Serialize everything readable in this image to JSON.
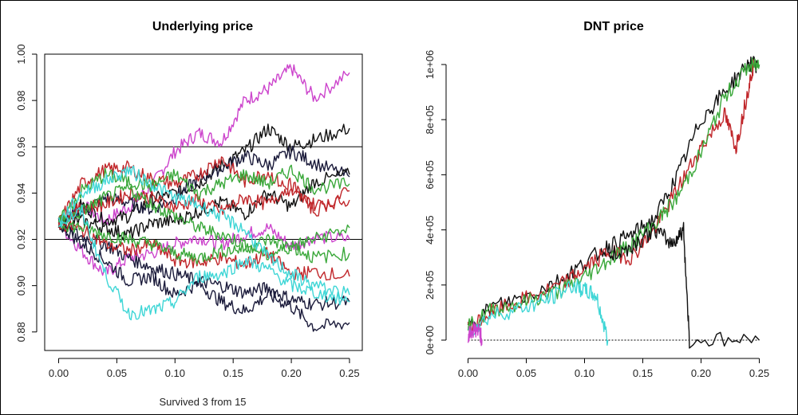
{
  "caption": "Survived 3 from 15",
  "colors": {
    "black": "#111111",
    "navy": "#1a1a3a",
    "red": "#c0262a",
    "green": "#3aa83a",
    "cyan": "#3fd6d6",
    "magenta": "#cc44cc"
  },
  "chart_data": [
    {
      "type": "line",
      "title": "Underlying price",
      "xlabel": "",
      "ylabel": "",
      "xlim": [
        0,
        0.25
      ],
      "ylim": [
        0.872,
        1.0
      ],
      "x_ticks": [
        "0.00",
        "0.05",
        "0.10",
        "0.15",
        "0.20",
        "0.25"
      ],
      "y_ticks": [
        "0.88",
        "0.90",
        "0.92",
        "0.94",
        "0.96",
        "0.98",
        "1.00"
      ],
      "barriers": [
        0.92,
        0.96
      ],
      "series": [
        {
          "color": "magenta",
          "x": [
            0,
            0.02,
            0.04,
            0.06,
            0.08,
            0.1,
            0.12,
            0.14,
            0.16,
            0.18,
            0.2,
            0.22,
            0.25
          ],
          "y": [
            0.927,
            0.935,
            0.928,
            0.934,
            0.943,
            0.958,
            0.966,
            0.962,
            0.98,
            0.985,
            0.994,
            0.981,
            0.992
          ]
        },
        {
          "color": "magenta",
          "x": [
            0,
            0.02,
            0.04,
            0.06,
            0.08,
            0.1,
            0.12,
            0.14,
            0.16,
            0.18,
            0.2,
            0.22,
            0.25
          ],
          "y": [
            0.927,
            0.915,
            0.905,
            0.912,
            0.914,
            0.918,
            0.921,
            0.918,
            0.922,
            0.925,
            0.917,
            0.921,
            0.92
          ]
        },
        {
          "color": "black",
          "x": [
            0,
            0.02,
            0.04,
            0.06,
            0.08,
            0.1,
            0.12,
            0.14,
            0.16,
            0.18,
            0.2,
            0.22,
            0.25
          ],
          "y": [
            0.927,
            0.935,
            0.928,
            0.93,
            0.937,
            0.94,
            0.944,
            0.952,
            0.958,
            0.968,
            0.96,
            0.963,
            0.968
          ]
        },
        {
          "color": "navy",
          "x": [
            0,
            0.02,
            0.04,
            0.06,
            0.08,
            0.1,
            0.12,
            0.14,
            0.16,
            0.18,
            0.2,
            0.22,
            0.25
          ],
          "y": [
            0.927,
            0.932,
            0.938,
            0.936,
            0.933,
            0.938,
            0.946,
            0.951,
            0.956,
            0.952,
            0.958,
            0.953,
            0.947
          ]
        },
        {
          "color": "black",
          "x": [
            0,
            0.02,
            0.04,
            0.06,
            0.08,
            0.1,
            0.12,
            0.14,
            0.16,
            0.18,
            0.2,
            0.22,
            0.25
          ],
          "y": [
            0.927,
            0.928,
            0.925,
            0.922,
            0.927,
            0.928,
            0.932,
            0.936,
            0.931,
            0.94,
            0.934,
            0.945,
            0.948
          ]
        },
        {
          "color": "navy",
          "x": [
            0,
            0.02,
            0.04,
            0.06,
            0.08,
            0.1,
            0.12,
            0.14,
            0.16,
            0.18,
            0.2,
            0.22,
            0.25
          ],
          "y": [
            0.927,
            0.918,
            0.911,
            0.902,
            0.904,
            0.896,
            0.901,
            0.893,
            0.889,
            0.896,
            0.891,
            0.882,
            0.884
          ]
        },
        {
          "color": "navy",
          "x": [
            0,
            0.02,
            0.04,
            0.06,
            0.08,
            0.1,
            0.12,
            0.14,
            0.16,
            0.18,
            0.2,
            0.22,
            0.25
          ],
          "y": [
            0.927,
            0.921,
            0.918,
            0.912,
            0.908,
            0.905,
            0.902,
            0.9,
            0.897,
            0.899,
            0.894,
            0.892,
            0.893
          ]
        },
        {
          "color": "red",
          "x": [
            0,
            0.02,
            0.04,
            0.06,
            0.08,
            0.1,
            0.12,
            0.14,
            0.16,
            0.18,
            0.2,
            0.22,
            0.25
          ],
          "y": [
            0.927,
            0.944,
            0.95,
            0.951,
            0.946,
            0.944,
            0.948,
            0.955,
            0.945,
            0.949,
            0.94,
            0.935,
            0.937
          ]
        },
        {
          "color": "red",
          "x": [
            0,
            0.02,
            0.04,
            0.06,
            0.08,
            0.1,
            0.12,
            0.14,
            0.16,
            0.18,
            0.2,
            0.22,
            0.25
          ],
          "y": [
            0.927,
            0.934,
            0.935,
            0.94,
            0.938,
            0.934,
            0.937,
            0.932,
            0.938,
            0.935,
            0.944,
            0.932,
            0.941
          ]
        },
        {
          "color": "red",
          "x": [
            0,
            0.02,
            0.04,
            0.06,
            0.08,
            0.1,
            0.12,
            0.14,
            0.16,
            0.18,
            0.2,
            0.22,
            0.25
          ],
          "y": [
            0.927,
            0.924,
            0.918,
            0.915,
            0.918,
            0.911,
            0.91,
            0.912,
            0.909,
            0.914,
            0.905,
            0.906,
            0.904
          ]
        },
        {
          "color": "green",
          "x": [
            0,
            0.02,
            0.04,
            0.06,
            0.08,
            0.1,
            0.12,
            0.14,
            0.16,
            0.18,
            0.2,
            0.22,
            0.25
          ],
          "y": [
            0.927,
            0.941,
            0.948,
            0.945,
            0.943,
            0.948,
            0.94,
            0.944,
            0.948,
            0.944,
            0.95,
            0.942,
            0.944
          ]
        },
        {
          "color": "green",
          "x": [
            0,
            0.02,
            0.04,
            0.06,
            0.08,
            0.1,
            0.12,
            0.14,
            0.16,
            0.18,
            0.2,
            0.22,
            0.25
          ],
          "y": [
            0.927,
            0.925,
            0.922,
            0.92,
            0.918,
            0.914,
            0.912,
            0.915,
            0.916,
            0.92,
            0.917,
            0.92,
            0.925
          ]
        },
        {
          "color": "green",
          "x": [
            0,
            0.02,
            0.04,
            0.06,
            0.08,
            0.1,
            0.12,
            0.14,
            0.16,
            0.18,
            0.2,
            0.22,
            0.25
          ],
          "y": [
            0.927,
            0.932,
            0.938,
            0.942,
            0.935,
            0.93,
            0.925,
            0.922,
            0.918,
            0.913,
            0.917,
            0.912,
            0.914
          ]
        },
        {
          "color": "cyan",
          "x": [
            0,
            0.02,
            0.04,
            0.06,
            0.08,
            0.1,
            0.12,
            0.14,
            0.16,
            0.18,
            0.2,
            0.22,
            0.25
          ],
          "y": [
            0.927,
            0.932,
            0.905,
            0.888,
            0.889,
            0.893,
            0.904,
            0.905,
            0.911,
            0.907,
            0.9,
            0.897,
            0.893
          ]
        },
        {
          "color": "cyan",
          "x": [
            0,
            0.02,
            0.04,
            0.06,
            0.08,
            0.1,
            0.12,
            0.14,
            0.16,
            0.18,
            0.2,
            0.22,
            0.25
          ],
          "y": [
            0.927,
            0.94,
            0.945,
            0.95,
            0.944,
            0.938,
            0.935,
            0.93,
            0.924,
            0.912,
            0.905,
            0.9,
            0.896
          ]
        }
      ]
    },
    {
      "type": "line",
      "title": "DNT price",
      "xlabel": "",
      "ylabel": "",
      "xlim": [
        0,
        0.25
      ],
      "ylim": [
        0,
        1000000
      ],
      "x_ticks": [
        "0.00",
        "0.05",
        "0.10",
        "0.15",
        "0.20",
        "0.25"
      ],
      "y_ticks": [
        "0e+00",
        "2e+05",
        "4e+05",
        "6e+05",
        "8e+05",
        "1e+06"
      ],
      "series": [
        {
          "color": "black",
          "x": [
            0,
            0.02,
            0.05,
            0.08,
            0.1,
            0.12,
            0.14,
            0.16,
            0.18,
            0.2,
            0.22,
            0.24,
            0.25
          ],
          "y": [
            50000,
            120000,
            160000,
            220000,
            280000,
            340000,
            380000,
            440000,
            600000,
            800000,
            900000,
            1000000,
            1000000
          ]
        },
        {
          "color": "red",
          "x": [
            0,
            0.02,
            0.05,
            0.08,
            0.1,
            0.12,
            0.14,
            0.16,
            0.18,
            0.2,
            0.22,
            0.23,
            0.24,
            0.245
          ],
          "y": [
            40000,
            100000,
            150000,
            200000,
            260000,
            320000,
            300000,
            400000,
            550000,
            700000,
            820000,
            700000,
            900000,
            1000000
          ]
        },
        {
          "color": "green",
          "x": [
            0,
            0.02,
            0.05,
            0.08,
            0.1,
            0.12,
            0.14,
            0.16,
            0.18,
            0.2,
            0.22,
            0.24,
            0.25
          ],
          "y": [
            45000,
            110000,
            140000,
            180000,
            230000,
            290000,
            350000,
            420000,
            520000,
            680000,
            880000,
            990000,
            1000000
          ]
        },
        {
          "color": "cyan",
          "x": [
            0,
            0.02,
            0.05,
            0.07,
            0.09,
            0.1,
            0.11,
            0.12
          ],
          "y": [
            30000,
            90000,
            120000,
            150000,
            200000,
            180000,
            160000,
            0
          ]
        },
        {
          "color": "black",
          "x": [
            0.12,
            0.14,
            0.16,
            0.175,
            0.185,
            0.19,
            0.25
          ],
          "y": [
            300000,
            340000,
            400000,
            350000,
            400000,
            0,
            0
          ]
        },
        {
          "color": "magenta",
          "x": [
            0,
            0.005,
            0.01,
            0.012
          ],
          "y": [
            20000,
            40000,
            30000,
            0
          ]
        }
      ]
    }
  ]
}
